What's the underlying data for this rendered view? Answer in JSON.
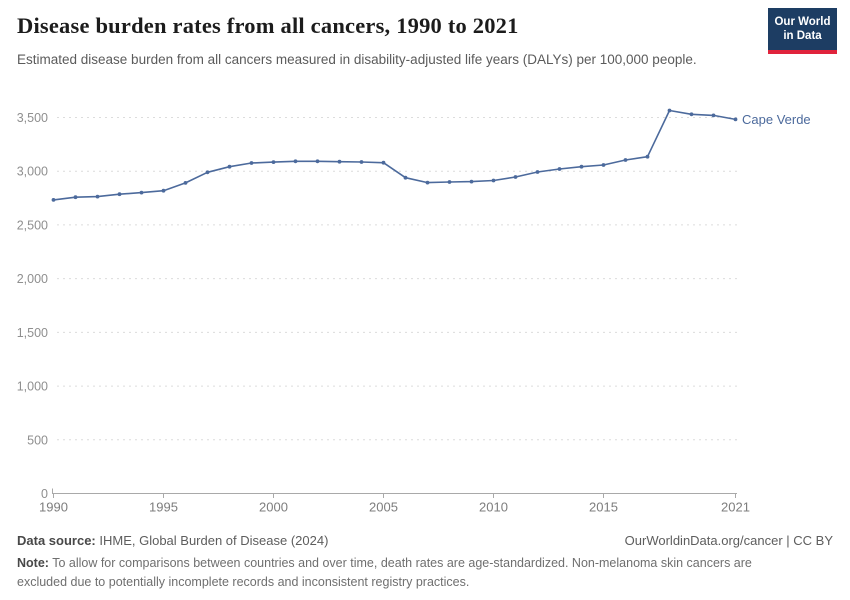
{
  "header": {
    "title": "Disease burden rates from all cancers, 1990 to 2021",
    "subtitle": "Estimated disease burden from all cancers measured in disability-adjusted life years (DALYs) per 100,000 people.",
    "logo": {
      "line1": "Our World",
      "line2": "in Data",
      "bg": "#1d3d63",
      "accent": "#e0233c"
    }
  },
  "chart_data": {
    "type": "line",
    "title": "Disease burden rates from all cancers, 1990 to 2021",
    "subtitle": "Estimated disease burden from all cancers measured in disability-adjusted life years (DALYs) per 100,000 people.",
    "xlabel": "",
    "ylabel": "",
    "xlim": [
      1990,
      2021
    ],
    "ylim": [
      0,
      3500
    ],
    "x_ticks": [
      1990,
      1995,
      2000,
      2005,
      2010,
      2015,
      2021
    ],
    "y_ticks": [
      0,
      500,
      1000,
      1500,
      2000,
      2500,
      3000,
      3500
    ],
    "grid": "horizontal-dashed",
    "legend_position": "end-of-line-label",
    "x": [
      1990,
      1991,
      1992,
      1993,
      1994,
      1995,
      1996,
      1997,
      1998,
      1999,
      2000,
      2001,
      2002,
      2003,
      2004,
      2005,
      2006,
      2007,
      2008,
      2009,
      2010,
      2011,
      2012,
      2013,
      2014,
      2015,
      2016,
      2017,
      2018,
      2019,
      2020,
      2021
    ],
    "series": [
      {
        "name": "Cape Verde",
        "color": "#4C6A9C",
        "values": [
          2733,
          2758,
          2764,
          2786,
          2801,
          2819,
          2891,
          2990,
          3042,
          3076,
          3085,
          3092,
          3092,
          3089,
          3086,
          3079,
          2940,
          2894,
          2900,
          2903,
          2914,
          2946,
          2993,
          3021,
          3042,
          3058,
          3104,
          3135,
          3565,
          3530,
          3520,
          3482
        ]
      }
    ]
  },
  "footer": {
    "datasource_label": "Data source:",
    "datasource_value": " IHME, Global Burden of Disease (2024)",
    "link": "OurWorldinData.org/cancer | CC BY",
    "note_label": "Note:",
    "note_value": " To allow for comparisons between countries and over time, death rates are age-standardized. Non-melanoma skin cancers are excluded due to potentially incomplete records and inconsistent registry practices."
  }
}
